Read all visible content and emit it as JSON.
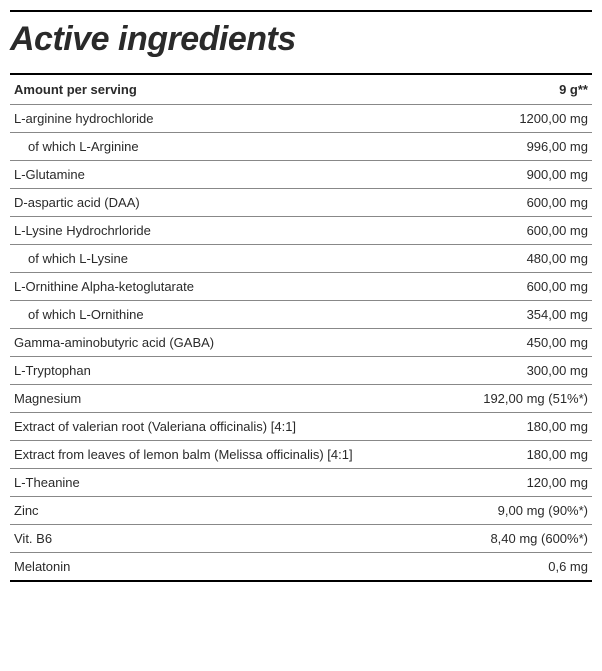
{
  "title": "Active ingredients",
  "table": {
    "header": {
      "label": "Amount per serving",
      "amount": "9 g**"
    },
    "rows": [
      {
        "label": "L-arginine hydrochloride",
        "amount": "1200,00 mg",
        "indent": false
      },
      {
        "label": "of which L-Arginine",
        "amount": "996,00 mg",
        "indent": true
      },
      {
        "label": "L-Glutamine",
        "amount": "900,00 mg",
        "indent": false
      },
      {
        "label": "D-aspartic acid (DAA)",
        "amount": "600,00 mg",
        "indent": false
      },
      {
        "label": "L-Lysine Hydrochrloride",
        "amount": "600,00 mg",
        "indent": false
      },
      {
        "label": "of which L-Lysine",
        "amount": "480,00 mg",
        "indent": true
      },
      {
        "label": "L-Ornithine Alpha-ketoglutarate",
        "amount": "600,00 mg",
        "indent": false
      },
      {
        "label": "of which L-Ornithine",
        "amount": "354,00 mg",
        "indent": true
      },
      {
        "label": "Gamma-aminobutyric acid (GABA)",
        "amount": "450,00 mg",
        "indent": false
      },
      {
        "label": "L-Tryptophan",
        "amount": "300,00 mg",
        "indent": false
      },
      {
        "label": "Magnesium",
        "amount": "192,00 mg (51%*)",
        "indent": false
      },
      {
        "label": "Extract of valerian root (Valeriana officinalis) [4:1]",
        "amount": "180,00 mg",
        "indent": false
      },
      {
        "label": "Extract from leaves of lemon balm (Melissa officinalis) [4:1]",
        "amount": "180,00 mg",
        "indent": false
      },
      {
        "label": "L-Theanine",
        "amount": "120,00 mg",
        "indent": false
      },
      {
        "label": "Zinc",
        "amount": "9,00 mg (90%*)",
        "indent": false
      },
      {
        "label": "Vit. B6",
        "amount": "8,40 mg (600%*)",
        "indent": false
      },
      {
        "label": "Melatonin",
        "amount": "0,6 mg",
        "indent": false
      }
    ]
  },
  "style": {
    "title_fontsize": 34,
    "title_color": "#2a2a2a",
    "body_fontsize": 13,
    "text_color": "#2a2a2a",
    "border_color_strong": "#000000",
    "border_color_light": "#888888",
    "background": "#ffffff",
    "font_family": "Arial"
  }
}
